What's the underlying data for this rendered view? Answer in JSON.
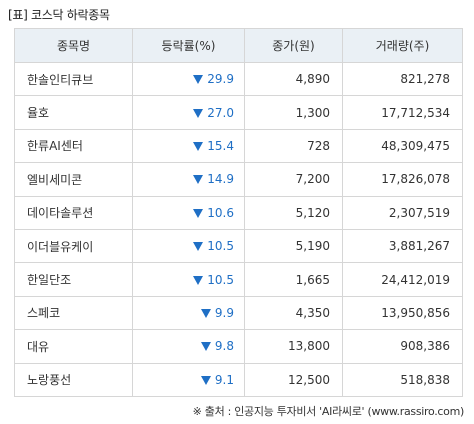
{
  "title": "[표] 코스닥 하락종목",
  "headers": [
    "종목명",
    "등락률(%)",
    "종가(원)",
    "거래량(주)"
  ],
  "rows": [
    {
      "name": "한솔인티큐브",
      "rate": "29.9",
      "price": "4,890",
      "volume": "821,278"
    },
    {
      "name": "율호",
      "rate": "27.0",
      "price": "1,300",
      "volume": "17,712,534"
    },
    {
      "name": "한류AI센터",
      "rate": "15.4",
      "price": "728",
      "volume": "48,309,475"
    },
    {
      "name": "엘비세미콘",
      "rate": "14.9",
      "price": "7,200",
      "volume": "17,826,078"
    },
    {
      "name": "데이타솔루션",
      "rate": "10.6",
      "price": "5,120",
      "volume": "2,307,519"
    },
    {
      "name": "이더블유케이",
      "rate": "10.5",
      "price": "5,190",
      "volume": "3,881,267"
    },
    {
      "name": "한일단조",
      "rate": "10.5",
      "price": "1,665",
      "volume": "24,412,019"
    },
    {
      "name": "스페코",
      "rate": "9.9",
      "price": "4,350",
      "volume": "13,950,856"
    },
    {
      "name": "대유",
      "rate": "9.8",
      "price": "13,800",
      "volume": "908,386"
    },
    {
      "name": "노랑풍선",
      "rate": "9.1",
      "price": "12,500",
      "volume": "518,838"
    }
  ],
  "source": "※ 출처 : 인공지능 투자비서 'AI라씨로' (www.rassiro.com)",
  "colors": {
    "down": "#1f6fc5",
    "header_bg": "#eaf0f5",
    "border": "#d6d6d6"
  },
  "icons": {
    "down_marker": "down-triangle-icon"
  }
}
